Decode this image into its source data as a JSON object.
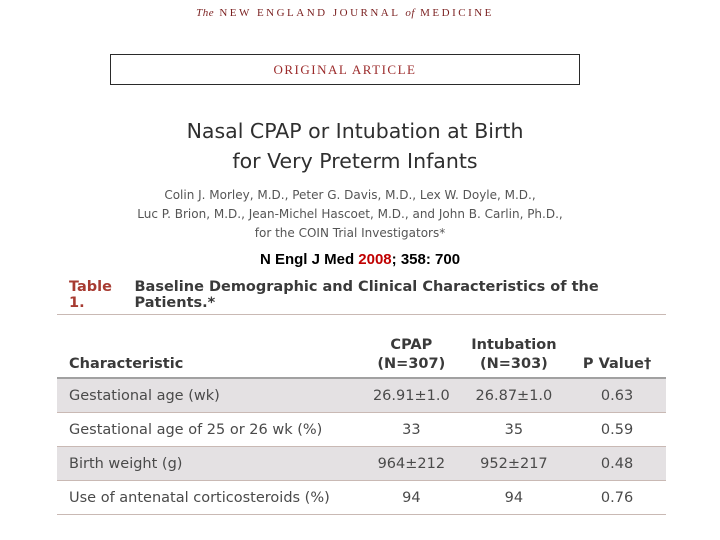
{
  "journal": {
    "prefix": "The",
    "name_part1": "NEW ENGLAND JOURNAL",
    "of": "of",
    "name_part2": "MEDICINE"
  },
  "section_label": "ORIGINAL ARTICLE",
  "article": {
    "title_line1": "Nasal CPAP or Intubation at Birth",
    "title_line2": "for Very Preterm Infants",
    "authors_line1": "Colin J. Morley, M.D., Peter G. Davis, M.D., Lex W. Doyle, M.D.,",
    "authors_line2": "Luc P. Brion, M.D., Jean-Michel Hascoet, M.D., and John B. Carlin, Ph.D.,",
    "authors_line3": "for the COIN Trial Investigators*"
  },
  "citation": {
    "journal": "N Engl J Med ",
    "year": "2008",
    "rest": "; 358: 700"
  },
  "table": {
    "label": "Table 1.",
    "caption": "Baseline Demographic and Clinical Characteristics of the Patients.*",
    "headers": {
      "characteristic": "Characteristic",
      "cpap": "CPAP",
      "cpap_n": "(N=307)",
      "intubation": "Intubation",
      "intubation_n": "(N=303)",
      "p_value": "P Value†"
    },
    "rows": [
      {
        "characteristic": "Gestational age (wk)",
        "cpap": "26.91±1.0",
        "intubation": "26.87±1.0",
        "p": "0.63"
      },
      {
        "characteristic": "Gestational age of 25 or 26 wk (%)",
        "cpap": "33",
        "intubation": "35",
        "p": "0.59"
      },
      {
        "characteristic": "Birth weight (g)",
        "cpap": "964±212",
        "intubation": "952±217",
        "p": "0.48"
      },
      {
        "characteristic": "Use of antenatal corticosteroids (%)",
        "cpap": "94",
        "intubation": "94",
        "p": "0.76"
      }
    ]
  }
}
